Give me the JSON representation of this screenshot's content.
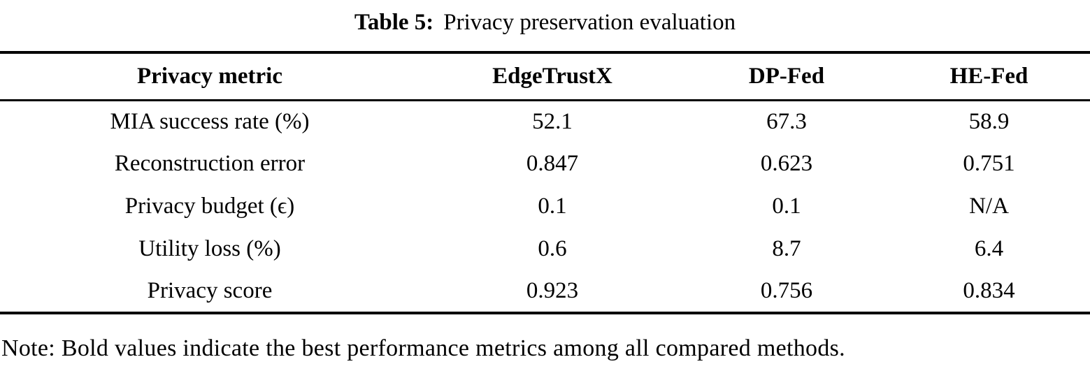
{
  "caption": {
    "label": "Table 5:",
    "title": "Privacy preservation evaluation"
  },
  "table": {
    "headers": [
      "Privacy metric",
      "EdgeTrustX",
      "DP-Fed",
      "HE-Fed"
    ],
    "rows": [
      {
        "metric": "MIA success rate (%)",
        "values": [
          "52.1",
          "67.3",
          "58.9"
        ]
      },
      {
        "metric": "Reconstruction error",
        "values": [
          "0.847",
          "0.623",
          "0.751"
        ]
      },
      {
        "metric": "Privacy budget (ϵ)",
        "values": [
          "0.1",
          "0.1",
          "N/A"
        ]
      },
      {
        "metric": "Utility loss (%)",
        "values": [
          "0.6",
          "8.7",
          "6.4"
        ]
      },
      {
        "metric": "Privacy score",
        "values": [
          "0.923",
          "0.756",
          "0.834"
        ]
      }
    ],
    "best_value": "0.923"
  },
  "note": "Note: Bold values indicate the best performance metrics among all compared methods.",
  "colors": {
    "text": "#000000",
    "background": "#ffffff",
    "rule": "#000000"
  }
}
